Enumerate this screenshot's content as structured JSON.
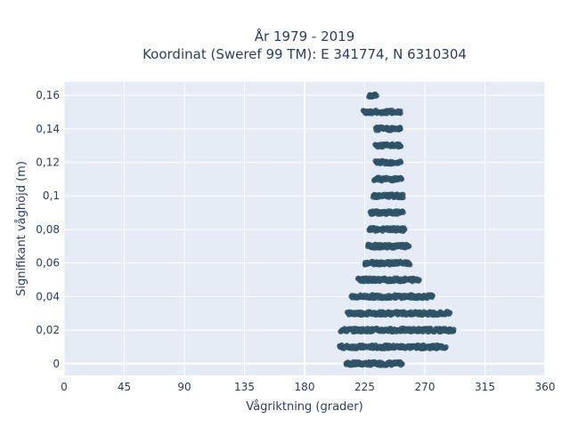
{
  "chart_data": {
    "type": "scatter",
    "title_line1": "År 1979 - 2019",
    "title_line2": "Koordinat (Sweref 99 TM): E 341774, N 6310304",
    "xlabel": "Vågriktning (grader)",
    "ylabel": "Signifikant våghöjd (m)",
    "xlim": [
      0,
      360
    ],
    "ylim": [
      -0.007,
      0.168
    ],
    "xticks": [
      0,
      45,
      90,
      135,
      180,
      225,
      270,
      315,
      360
    ],
    "xtick_labels": [
      "0",
      "45",
      "90",
      "135",
      "180",
      "225",
      "270",
      "315",
      "360"
    ],
    "yticks": [
      0,
      0.02,
      0.04,
      0.06,
      0.08,
      0.1,
      0.12,
      0.14,
      0.16
    ],
    "ytick_labels": [
      "0",
      "0,02",
      "0,04",
      "0,06",
      "0,08",
      "0,1",
      "0,12",
      "0,14",
      "0,16"
    ],
    "grid": true,
    "background": "#e5ecf6",
    "marker_color": "#2f5266",
    "bands": [
      {
        "y": 0.0,
        "x_min": 211,
        "x_max": 253
      },
      {
        "y": 0.01,
        "x_min": 206,
        "x_max": 286
      },
      {
        "y": 0.02,
        "x_min": 207,
        "x_max": 292
      },
      {
        "y": 0.03,
        "x_min": 212,
        "x_max": 289
      },
      {
        "y": 0.04,
        "x_min": 215,
        "x_max": 276
      },
      {
        "y": 0.05,
        "x_min": 220,
        "x_max": 266
      },
      {
        "y": 0.06,
        "x_min": 225,
        "x_max": 259
      },
      {
        "y": 0.07,
        "x_min": 227,
        "x_max": 258
      },
      {
        "y": 0.08,
        "x_min": 228,
        "x_max": 255
      },
      {
        "y": 0.09,
        "x_min": 229,
        "x_max": 254
      },
      {
        "y": 0.1,
        "x_min": 231,
        "x_max": 254
      },
      {
        "y": 0.11,
        "x_min": 232,
        "x_max": 253
      },
      {
        "y": 0.12,
        "x_min": 233,
        "x_max": 252
      },
      {
        "y": 0.13,
        "x_min": 233,
        "x_max": 252
      },
      {
        "y": 0.14,
        "x_min": 233,
        "x_max": 252
      },
      {
        "y": 0.15,
        "x_min": 224,
        "x_max": 252
      },
      {
        "y": 0.16,
        "x_min": 228,
        "x_max": 234
      }
    ]
  }
}
